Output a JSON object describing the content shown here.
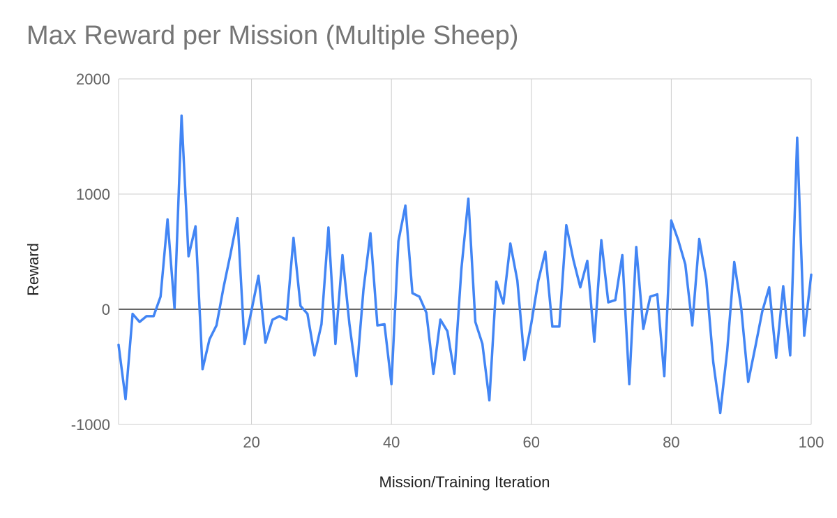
{
  "chart_data": {
    "type": "line",
    "title": "Max Reward per Mission (Multiple Sheep)",
    "xlabel": "Mission/Training Iteration",
    "ylabel": "Reward",
    "xlim": [
      1,
      100
    ],
    "ylim": [
      -1000,
      2000
    ],
    "x_ticks": [
      20,
      40,
      60,
      80,
      100
    ],
    "y_ticks": [
      -1000,
      0,
      1000,
      2000
    ],
    "grid": true,
    "legend": "none",
    "colors": {
      "series": "#4285F4",
      "grid": "#cccccc",
      "zero_line": "#333333"
    },
    "series": [
      {
        "x": [
          1,
          2,
          3,
          4,
          5,
          6,
          7,
          8,
          9,
          10,
          11,
          12,
          13,
          14,
          15,
          16,
          17,
          18,
          19,
          20,
          21,
          22,
          23,
          24,
          25,
          26,
          27,
          28,
          29,
          30,
          31,
          32,
          33,
          34,
          35,
          36,
          37,
          38,
          39,
          40,
          41,
          42,
          43,
          44,
          45,
          46,
          47,
          48,
          49,
          50,
          51,
          52,
          53,
          54,
          55,
          56,
          57,
          58,
          59,
          60,
          61,
          62,
          63,
          64,
          65,
          66,
          67,
          68,
          69,
          70,
          71,
          72,
          73,
          74,
          75,
          76,
          77,
          78,
          79,
          80,
          81,
          82,
          83,
          84,
          85,
          86,
          87,
          88,
          89,
          90,
          91,
          92,
          93,
          94,
          95,
          96,
          97,
          98,
          99,
          100
        ],
        "values": [
          -310,
          -780,
          -40,
          -110,
          -60,
          -60,
          110,
          780,
          10,
          1680,
          460,
          720,
          -520,
          -260,
          -140,
          190,
          480,
          790,
          -300,
          -10,
          290,
          -290,
          -90,
          -60,
          -90,
          620,
          30,
          -40,
          -400,
          -130,
          710,
          -300,
          470,
          -130,
          -580,
          170,
          660,
          -140,
          -130,
          -650,
          590,
          900,
          140,
          110,
          -30,
          -560,
          -90,
          -190,
          -560,
          350,
          960,
          -110,
          -300,
          -790,
          240,
          50,
          570,
          250,
          -440,
          -120,
          250,
          500,
          -150,
          -150,
          730,
          430,
          190,
          420,
          -280,
          600,
          60,
          80,
          470,
          -650,
          540,
          -170,
          110,
          130,
          -580,
          770,
          600,
          390,
          -140,
          610,
          260,
          -460,
          -900,
          -360,
          410,
          10,
          -630,
          -330,
          -20,
          190,
          -420,
          200,
          -400,
          1490,
          -230,
          300
        ]
      }
    ]
  }
}
